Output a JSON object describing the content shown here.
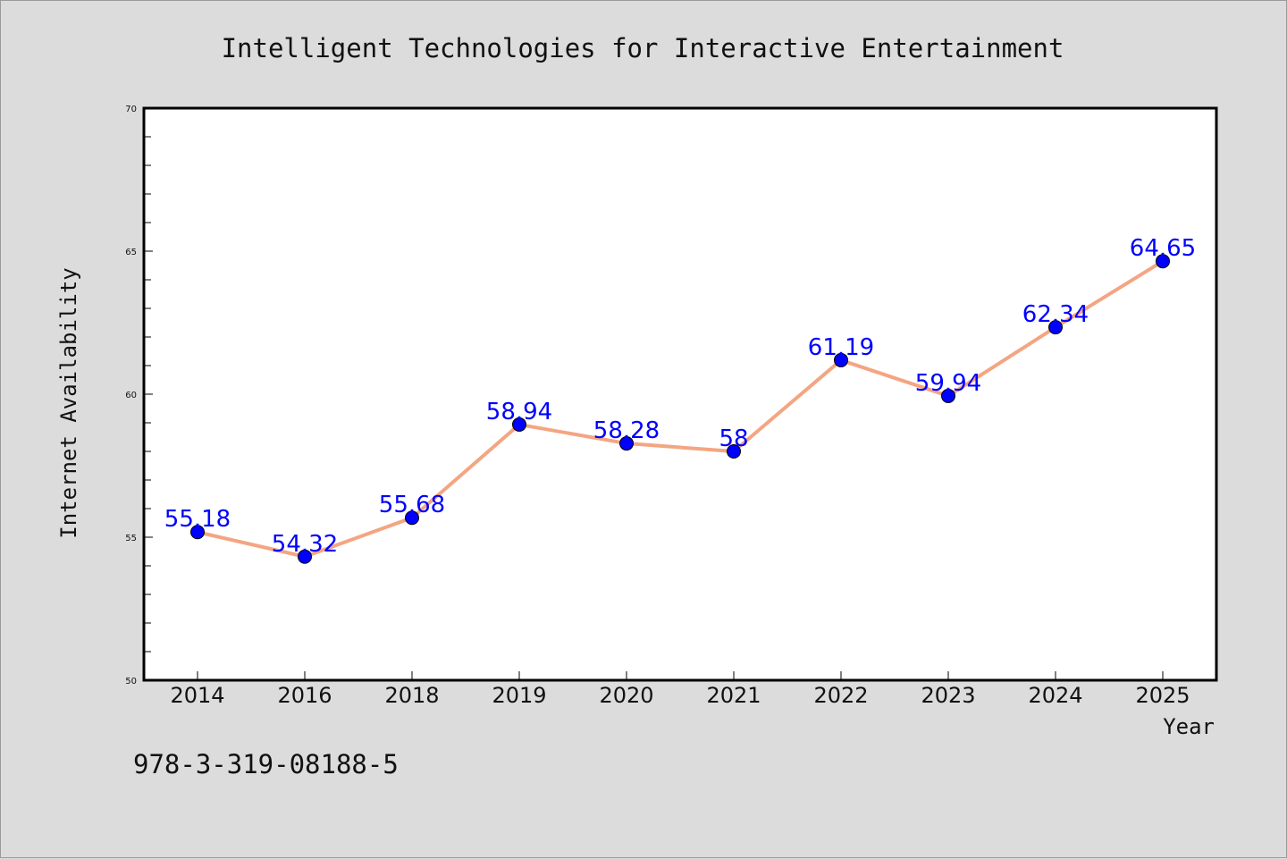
{
  "footnote": "978-3-319-08188-5",
  "colors": {
    "line": "#f4a582",
    "marker": "#0000ff",
    "label": "#0000ff",
    "background": "#dcdcdc",
    "plot_background": "#ffffff"
  },
  "chart_data": {
    "type": "line",
    "title": "Intelligent Technologies for Interactive Entertainment",
    "xlabel": "Year",
    "ylabel": "Internet Availability",
    "categories": [
      "2014",
      "2016",
      "2018",
      "2019",
      "2020",
      "2021",
      "2022",
      "2023",
      "2024",
      "2025"
    ],
    "series": [
      {
        "values": [
          55.18,
          54.32,
          55.68,
          58.94,
          58.28,
          58,
          61.19,
          59.94,
          62.34,
          64.65
        ],
        "labels": [
          "55.18",
          "54.32",
          "55.68",
          "58.94",
          "58.28",
          "58",
          "61.19",
          "59.94",
          "62.34",
          "64.65"
        ]
      }
    ],
    "ylim": [
      50,
      70
    ],
    "yticks": [
      50,
      55,
      60,
      65,
      70
    ],
    "ytick_labels": [
      "50",
      "55",
      "60",
      "65",
      "70"
    ],
    "grid": false,
    "legend": "none"
  }
}
